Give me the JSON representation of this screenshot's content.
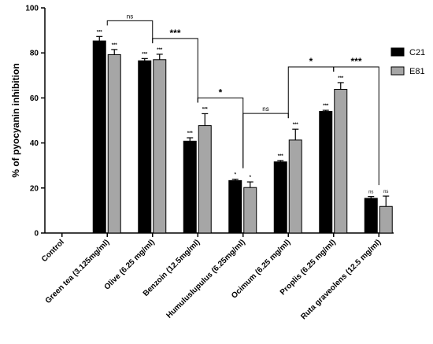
{
  "chart_data": {
    "type": "bar",
    "ylabel": "% of pyocyanin inhibition",
    "ylim": [
      0,
      100
    ],
    "yticks": [
      0,
      20,
      40,
      60,
      80,
      100
    ],
    "categories": [
      "Control",
      "Green tea (3.125mg/ml)",
      "Olive (6.25 mg/ml)",
      "Benzoin (12.5mg/ml)",
      "Humuluslupulus (6.25mg/ml)",
      "Ocimum (6.25 mg/ml)",
      "Proplis (6.25 mg/ml)",
      "Ruta graveolens (12.5 mg/ml)"
    ],
    "series": [
      {
        "name": "C21",
        "color": "#000000",
        "values": [
          0,
          85.3,
          76.5,
          40.8,
          23.3,
          31.6,
          54.0,
          15.4
        ],
        "errors": [
          0,
          2.0,
          1.0,
          1.5,
          0.6,
          0.6,
          0.5,
          0.8
        ],
        "significance": [
          "",
          "***",
          "***",
          "***",
          "*",
          "***",
          "***",
          "ns"
        ]
      },
      {
        "name": "E81",
        "color": "#a6a6a6",
        "values": [
          0,
          79.2,
          77.0,
          47.7,
          20.2,
          41.3,
          63.8,
          11.8
        ],
        "errors": [
          0,
          2.3,
          2.4,
          5.3,
          2.5,
          4.8,
          3.0,
          4.6
        ],
        "significance": [
          "",
          "***",
          "***",
          "***",
          "*",
          "***",
          "***",
          "ns"
        ]
      }
    ],
    "comparisons": [
      {
        "from": 1,
        "to": 2,
        "label": "ns"
      },
      {
        "from": 2,
        "to": 3,
        "label": "***"
      },
      {
        "from": 3,
        "to": 4,
        "label": "*"
      },
      {
        "from": 4,
        "to": 5,
        "label": "ns"
      },
      {
        "from": 5,
        "to": 6,
        "label": "*"
      },
      {
        "from": 6,
        "to": 7,
        "label": "***"
      }
    ],
    "legend_position": "right",
    "grid": false
  }
}
